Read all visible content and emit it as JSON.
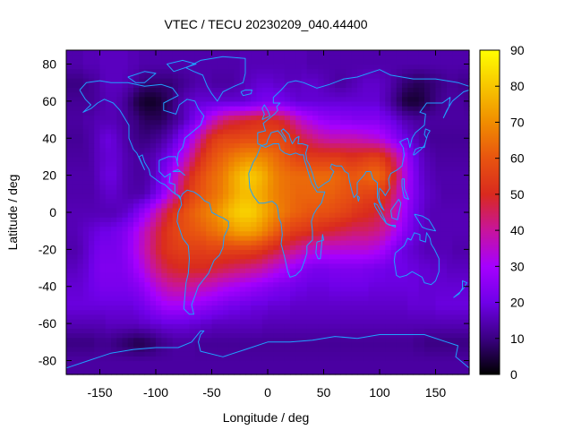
{
  "chart_data": {
    "type": "heatmap",
    "title": "VTEC / TECU 20230209_040.44400",
    "xlabel": "Longitude / deg",
    "ylabel": "Latitude / deg",
    "xlim": [
      -180,
      180
    ],
    "ylim": [
      -87.5,
      87.5
    ],
    "xticks": [
      -150,
      -100,
      -50,
      0,
      50,
      100,
      150
    ],
    "yticks": [
      -80,
      -60,
      -40,
      -20,
      0,
      20,
      40,
      60,
      80
    ],
    "colorbar": {
      "range": [
        0,
        90
      ],
      "ticks": [
        0,
        10,
        20,
        30,
        40,
        50,
        60,
        70,
        80,
        90
      ],
      "palette": [
        "#000000",
        "#3a0082",
        "#6f00e8",
        "#a600ff",
        "#c8149c",
        "#d92a1e",
        "#e85410",
        "#f08d00",
        "#f7c600",
        "#ffff00"
      ]
    },
    "grid": "5 deg longitude x 2.5 deg latitude cells",
    "rows": [
      {
        "lat": 80,
        "values": [
          14,
          14,
          14,
          15,
          15,
          15,
          16,
          16,
          16,
          16,
          16,
          15,
          15,
          14,
          14,
          14,
          14,
          14,
          14,
          14,
          14,
          14,
          14,
          14,
          14,
          14,
          14,
          14,
          14,
          14,
          14,
          15,
          15,
          15,
          15,
          15,
          15,
          15,
          15,
          15,
          15,
          15,
          15,
          14,
          14,
          14,
          14,
          14,
          14,
          14,
          14,
          14,
          14,
          14,
          14,
          14,
          14,
          14,
          14,
          14,
          14,
          14,
          14,
          14,
          14,
          14,
          14,
          14,
          14,
          14,
          14,
          14
        ]
      },
      {
        "lat": 70,
        "values": [
          10,
          10,
          10,
          11,
          12,
          13,
          15,
          16,
          16,
          16,
          15,
          14,
          12,
          10,
          9,
          9,
          9,
          9,
          9,
          10,
          11,
          12,
          13,
          14,
          14,
          14,
          13,
          13,
          13,
          13,
          14,
          15,
          16,
          17,
          18,
          18,
          18,
          17,
          17,
          16,
          16,
          16,
          17,
          17,
          17,
          16,
          15,
          14,
          13,
          13,
          14,
          15,
          16,
          17,
          17,
          17,
          16,
          15,
          13,
          11,
          9,
          8,
          7,
          7,
          8,
          9,
          10,
          11,
          12,
          12,
          11,
          11
        ]
      },
      {
        "lat": 60,
        "values": [
          12,
          12,
          12,
          12,
          12,
          13,
          14,
          15,
          15,
          14,
          12,
          9,
          6,
          4,
          3,
          3,
          4,
          6,
          8,
          11,
          14,
          16,
          17,
          18,
          18,
          18,
          18,
          18,
          18,
          18,
          18,
          18,
          19,
          20,
          21,
          22,
          22,
          22,
          21,
          20,
          19,
          18,
          18,
          18,
          18,
          18,
          18,
          18,
          18,
          18,
          18,
          18,
          18,
          18,
          18,
          18,
          16,
          14,
          11,
          8,
          5,
          4,
          4,
          5,
          7,
          9,
          11,
          12,
          13,
          13,
          13,
          12
        ]
      },
      {
        "lat": 50,
        "values": [
          13,
          13,
          13,
          14,
          14,
          15,
          15,
          15,
          15,
          14,
          13,
          11,
          10,
          8,
          7,
          7,
          7,
          8,
          10,
          12,
          14,
          17,
          20,
          24,
          28,
          33,
          37,
          41,
          44,
          46,
          47,
          48,
          49,
          50,
          51,
          51,
          51,
          50,
          48,
          45,
          41,
          37,
          34,
          32,
          30,
          28,
          27,
          26,
          26,
          25,
          25,
          24,
          24,
          24,
          24,
          24,
          22,
          21,
          19,
          17,
          15,
          14,
          13,
          13,
          13,
          13,
          13,
          13,
          13,
          13,
          13,
          13
        ]
      },
      {
        "lat": 40,
        "values": [
          12,
          12,
          12,
          13,
          14,
          16,
          18,
          19,
          18,
          16,
          14,
          12,
          11,
          10,
          10,
          11,
          12,
          14,
          16,
          19,
          23,
          27,
          32,
          38,
          44,
          50,
          54,
          56,
          57,
          57,
          57,
          58,
          58,
          58,
          58,
          58,
          58,
          58,
          57,
          55,
          52,
          49,
          46,
          44,
          42,
          40,
          39,
          38,
          38,
          38,
          38,
          38,
          37,
          36,
          35,
          34,
          32,
          29,
          26,
          23,
          20,
          18,
          16,
          14,
          13,
          12,
          12,
          12,
          12,
          12,
          12,
          12
        ]
      },
      {
        "lat": 30,
        "values": [
          13,
          13,
          13,
          13,
          14,
          16,
          17,
          18,
          18,
          17,
          15,
          14,
          13,
          13,
          14,
          15,
          17,
          19,
          22,
          26,
          31,
          36,
          42,
          48,
          53,
          57,
          60,
          62,
          64,
          66,
          68,
          69,
          70,
          70,
          69,
          68,
          66,
          64,
          62,
          60,
          58,
          56,
          55,
          54,
          54,
          54,
          54,
          54,
          54,
          53,
          52,
          52,
          53,
          54,
          55,
          55,
          53,
          49,
          44,
          38,
          31,
          25,
          20,
          17,
          15,
          14,
          13,
          13,
          13,
          13,
          13,
          13
        ]
      },
      {
        "lat": 20,
        "values": [
          14,
          14,
          14,
          14,
          14,
          16,
          18,
          19,
          19,
          17,
          15,
          14,
          13,
          13,
          14,
          16,
          19,
          23,
          28,
          34,
          40,
          46,
          52,
          56,
          59,
          62,
          64,
          66,
          69,
          73,
          76,
          79,
          81,
          80,
          78,
          75,
          71,
          68,
          66,
          65,
          64,
          64,
          64,
          64,
          64,
          64,
          64,
          64,
          63,
          62,
          61,
          61,
          62,
          63,
          64,
          64,
          62,
          57,
          50,
          42,
          34,
          27,
          22,
          18,
          16,
          15,
          14,
          14,
          14,
          14,
          14,
          14
        ]
      },
      {
        "lat": 10,
        "values": [
          14,
          14,
          14,
          14,
          14,
          15,
          16,
          17,
          17,
          16,
          15,
          14,
          14,
          14,
          16,
          19,
          23,
          28,
          34,
          40,
          46,
          52,
          56,
          59,
          61,
          63,
          65,
          67,
          70,
          73,
          76,
          78,
          78,
          77,
          75,
          73,
          70,
          68,
          66,
          65,
          64,
          63,
          63,
          63,
          63,
          63,
          62,
          62,
          61,
          60,
          59,
          58,
          57,
          56,
          56,
          55,
          53,
          49,
          43,
          37,
          31,
          26,
          22,
          19,
          17,
          16,
          15,
          14,
          14,
          14,
          14,
          14
        ]
      },
      {
        "lat": 0,
        "values": [
          15,
          15,
          15,
          15,
          15,
          15,
          15,
          15,
          15,
          16,
          17,
          19,
          22,
          26,
          30,
          35,
          40,
          45,
          50,
          54,
          57,
          60,
          62,
          64,
          66,
          68,
          70,
          73,
          76,
          79,
          81,
          82,
          82,
          81,
          78,
          75,
          72,
          69,
          67,
          65,
          63,
          62,
          61,
          60,
          60,
          59,
          59,
          58,
          57,
          56,
          55,
          53,
          52,
          51,
          50,
          48,
          46,
          43,
          39,
          34,
          29,
          24,
          20,
          18,
          16,
          15,
          15,
          15,
          15,
          15,
          15,
          15
        ]
      },
      {
        "lat": -10,
        "values": [
          15,
          15,
          16,
          17,
          18,
          19,
          20,
          20,
          21,
          22,
          24,
          27,
          31,
          35,
          39,
          43,
          47,
          51,
          54,
          56,
          58,
          59,
          60,
          61,
          62,
          64,
          65,
          67,
          69,
          71,
          73,
          74,
          74,
          73,
          71,
          68,
          65,
          62,
          59,
          57,
          55,
          54,
          53,
          52,
          51,
          50,
          49,
          48,
          47,
          46,
          45,
          44,
          44,
          44,
          43,
          42,
          40,
          37,
          33,
          29,
          25,
          22,
          19,
          17,
          16,
          15,
          15,
          15,
          15,
          15,
          15,
          15
        ]
      },
      {
        "lat": -20,
        "values": [
          14,
          14,
          15,
          17,
          19,
          21,
          22,
          22,
          22,
          23,
          25,
          28,
          32,
          36,
          40,
          44,
          48,
          51,
          53,
          54,
          55,
          55,
          55,
          55,
          55,
          56,
          56,
          56,
          56,
          56,
          56,
          56,
          56,
          55,
          54,
          52,
          50,
          48,
          46,
          44,
          42,
          40,
          38,
          36,
          35,
          34,
          34,
          34,
          34,
          34,
          34,
          34,
          34,
          34,
          33,
          32,
          30,
          27,
          24,
          21,
          19,
          18,
          17,
          16,
          15,
          15,
          15,
          15,
          15,
          14,
          14,
          14
        ]
      },
      {
        "lat": -30,
        "values": [
          16,
          16,
          17,
          18,
          20,
          22,
          23,
          23,
          23,
          23,
          24,
          26,
          29,
          32,
          36,
          40,
          43,
          46,
          48,
          49,
          50,
          50,
          50,
          50,
          50,
          49,
          48,
          47,
          46,
          45,
          44,
          43,
          42,
          41,
          40,
          38,
          36,
          34,
          32,
          30,
          28,
          26,
          24,
          23,
          22,
          22,
          22,
          23,
          23,
          23,
          23,
          23,
          23,
          22,
          22,
          21,
          21,
          20,
          20,
          20,
          20,
          19,
          19,
          18,
          18,
          17,
          17,
          17,
          16,
          16,
          16,
          16
        ]
      },
      {
        "lat": -40,
        "values": [
          18,
          18,
          18,
          19,
          20,
          21,
          22,
          22,
          22,
          22,
          22,
          23,
          24,
          26,
          29,
          32,
          35,
          37,
          39,
          40,
          40,
          40,
          39,
          38,
          37,
          36,
          35,
          33,
          32,
          31,
          30,
          29,
          28,
          27,
          26,
          25,
          24,
          23,
          22,
          22,
          21,
          20,
          20,
          19,
          19,
          19,
          19,
          20,
          20,
          20,
          20,
          20,
          20,
          20,
          19,
          19,
          19,
          19,
          19,
          19,
          19,
          19,
          19,
          18,
          18,
          18,
          18,
          18,
          18,
          18,
          18,
          18
        ]
      },
      {
        "lat": -50,
        "values": [
          19,
          19,
          19,
          19,
          19,
          19,
          19,
          19,
          19,
          19,
          19,
          19,
          20,
          21,
          23,
          25,
          27,
          29,
          30,
          30,
          30,
          29,
          28,
          27,
          26,
          25,
          24,
          23,
          22,
          21,
          21,
          20,
          20,
          19,
          19,
          19,
          18,
          18,
          18,
          18,
          17,
          17,
          17,
          17,
          17,
          17,
          17,
          17,
          17,
          17,
          17,
          17,
          17,
          17,
          17,
          17,
          17,
          17,
          17,
          17,
          17,
          18,
          18,
          18,
          18,
          18,
          19,
          19,
          19,
          19,
          19,
          19
        ]
      },
      {
        "lat": -60,
        "values": [
          15,
          15,
          15,
          15,
          15,
          15,
          15,
          16,
          16,
          16,
          16,
          16,
          16,
          17,
          17,
          18,
          18,
          19,
          19,
          19,
          19,
          19,
          18,
          18,
          17,
          17,
          16,
          16,
          16,
          16,
          16,
          16,
          16,
          16,
          16,
          15,
          15,
          15,
          15,
          15,
          15,
          15,
          15,
          15,
          15,
          15,
          15,
          15,
          15,
          15,
          15,
          15,
          15,
          15,
          15,
          15,
          15,
          15,
          15,
          15,
          15,
          15,
          15,
          15,
          15,
          15,
          15,
          15,
          15,
          15,
          15,
          15
        ]
      },
      {
        "lat": -70,
        "values": [
          10,
          10,
          10,
          10,
          10,
          11,
          11,
          11,
          10,
          9,
          8,
          7,
          6,
          6,
          7,
          8,
          10,
          11,
          12,
          13,
          13,
          13,
          13,
          12,
          12,
          12,
          12,
          12,
          12,
          12,
          12,
          12,
          12,
          12,
          12,
          12,
          12,
          12,
          12,
          12,
          12,
          12,
          12,
          12,
          12,
          12,
          12,
          12,
          12,
          12,
          12,
          12,
          12,
          12,
          12,
          12,
          12,
          12,
          12,
          12,
          12,
          12,
          11,
          11,
          10,
          10,
          10,
          10,
          10,
          10,
          10,
          10
        ]
      },
      {
        "lat": -80,
        "values": [
          13,
          13,
          13,
          13,
          13,
          13,
          13,
          13,
          13,
          13,
          13,
          13,
          13,
          13,
          13,
          13,
          13,
          13,
          13,
          13,
          13,
          13,
          13,
          13,
          13,
          13,
          13,
          13,
          13,
          13,
          13,
          13,
          13,
          13,
          13,
          13,
          13,
          13,
          13,
          13,
          13,
          13,
          13,
          13,
          13,
          13,
          13,
          13,
          13,
          13,
          13,
          13,
          13,
          13,
          13,
          13,
          13,
          13,
          13,
          13,
          13,
          13,
          13,
          13,
          13,
          13,
          13,
          13,
          13,
          13,
          13,
          13
        ]
      }
    ]
  }
}
